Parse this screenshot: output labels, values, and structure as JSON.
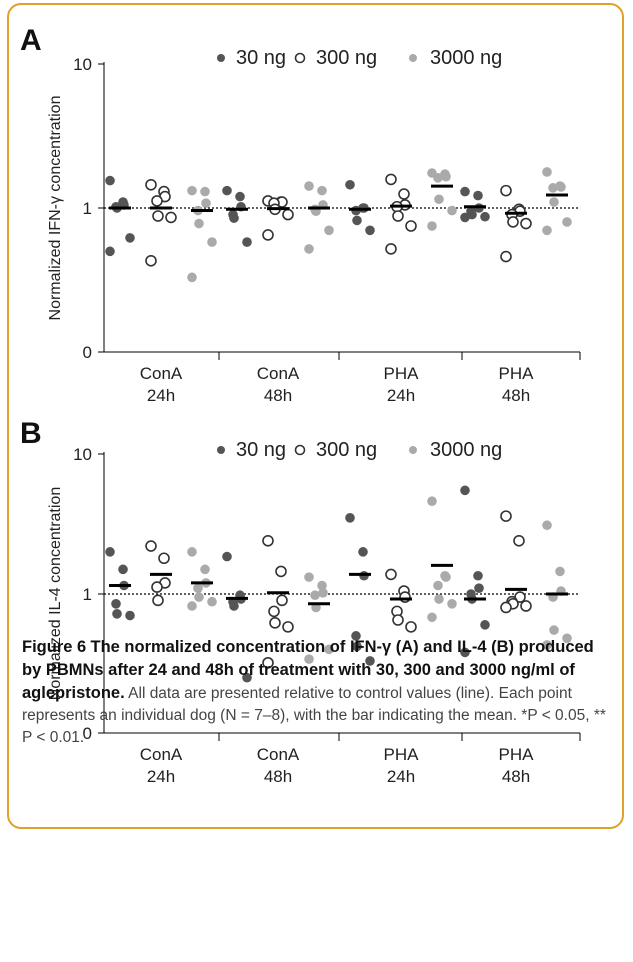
{
  "caption": {
    "figure_label": "Figure 6",
    "bold_title": "The normalized concentration of IFN-γ (A) and IL-4 (B) produced by PBMNs after 24 and 48h of treatment with 30, 300 and 3000 ng/ml of aglepristone.",
    "body": "All data are presented relative to control values (line). Each point represents an individual dog (N = 7–8), with the bar indicating the mean. *P < 0.05, ** P < 0.01."
  },
  "colors": {
    "series_30": "#555555",
    "series_300": "#333333",
    "series_3000": "#aaaaaa",
    "mean_bar": "#000000",
    "border": "#e0a02a"
  },
  "chart_data": [
    {
      "panel": "A",
      "type": "scatter",
      "ylabel": "Normalized IFN-γ concentration",
      "yscale": "log-like",
      "yticks": [
        "10",
        "1",
        "0"
      ],
      "reference_line": 1,
      "categories": [
        "ConA\n24h",
        "ConA\n48h",
        "PHA\n24h",
        "PHA\n48h"
      ],
      "legend": {
        "placement": "top",
        "markers": [
          "filled-dark",
          "open",
          "filled-light"
        ]
      },
      "series": [
        {
          "name": "30 ng",
          "values": [
            [
              1.55,
              1.1,
              1.05,
              1.02,
              1.0,
              0.62,
              0.5
            ],
            [
              1.32,
              1.2,
              1.02,
              0.9,
              0.85,
              0.58
            ],
            [
              1.45,
              1.0,
              1.0,
              0.96,
              0.82,
              0.7
            ],
            [
              1.3,
              1.22,
              1.0,
              0.95,
              0.9,
              0.87,
              0.86
            ]
          ],
          "means": [
            1.0,
            0.98,
            0.98,
            1.02
          ]
        },
        {
          "name": "300 ng",
          "values": [
            [
              1.45,
              1.3,
              1.2,
              1.12,
              0.88,
              0.86,
              0.43
            ],
            [
              1.12,
              1.1,
              1.1,
              1.08,
              0.98,
              0.9,
              0.65
            ],
            [
              1.58,
              1.25,
              1.05,
              1.02,
              0.88,
              0.75,
              0.52
            ],
            [
              1.32,
              0.98,
              0.95,
              0.9,
              0.8,
              0.78,
              0.46
            ]
          ],
          "means": [
            1.0,
            0.99,
            1.03,
            0.92
          ]
        },
        {
          "name": "3000 ng",
          "values": [
            [
              1.32,
              1.3,
              1.08,
              0.96,
              0.78,
              0.58,
              0.33
            ],
            [
              1.42,
              1.32,
              1.05,
              0.98,
              0.95,
              0.7,
              0.52
            ],
            [
              1.75,
              1.72,
              1.65,
              1.62,
              1.15,
              0.96,
              0.75
            ],
            [
              1.78,
              1.42,
              1.4,
              1.38,
              1.1,
              0.8,
              0.7
            ]
          ],
          "means": [
            0.96,
            1.0,
            1.42,
            1.23
          ]
        }
      ]
    },
    {
      "panel": "B",
      "type": "scatter",
      "ylabel": "Normalized IL-4 concentration",
      "yscale": "log-like",
      "yticks": [
        "10",
        "1",
        "0"
      ],
      "reference_line": 1,
      "categories": [
        "ConA\n24h",
        "ConA\n48h",
        "PHA\n24h",
        "PHA\n48h"
      ],
      "legend": {
        "placement": "top",
        "markers": [
          "filled-dark",
          "open",
          "filled-light"
        ]
      },
      "series": [
        {
          "name": "30 ng",
          "values": [
            [
              2.0,
              1.5,
              1.15,
              0.85,
              0.72,
              0.7
            ],
            [
              1.85,
              0.98,
              0.92,
              0.88,
              0.82,
              0.25
            ],
            [
              3.5,
              2.0,
              1.35,
              0.5,
              0.42,
              0.33
            ],
            [
              5.5,
              1.35,
              1.1,
              1.0,
              0.92,
              0.6,
              0.38
            ]
          ],
          "means": [
            1.15,
            0.93,
            1.38,
            0.92
          ]
        },
        {
          "name": "300 ng",
          "values": [
            [
              2.2,
              1.8,
              1.2,
              1.12,
              0.9
            ],
            [
              2.4,
              1.45,
              0.9,
              0.75,
              0.62,
              0.58,
              0.32
            ],
            [
              1.38,
              1.05,
              0.95,
              0.75,
              0.65,
              0.58
            ],
            [
              3.6,
              2.4,
              0.95,
              0.88,
              0.85,
              0.82,
              0.8
            ]
          ],
          "means": [
            1.38,
            1.02,
            0.92,
            1.08
          ]
        },
        {
          "name": "3000 ng",
          "values": [
            [
              2.0,
              1.5,
              1.2,
              1.1,
              0.95,
              0.88,
              0.82
            ],
            [
              1.32,
              1.15,
              1.02,
              0.98,
              0.8,
              0.4,
              0.34
            ],
            [
              4.6,
              1.35,
              1.32,
              1.15,
              0.92,
              0.85,
              0.68
            ],
            [
              3.1,
              1.45,
              1.05,
              0.95,
              0.55,
              0.48,
              0.43
            ]
          ],
          "means": [
            1.2,
            0.85,
            1.6,
            1.0
          ]
        }
      ]
    }
  ]
}
